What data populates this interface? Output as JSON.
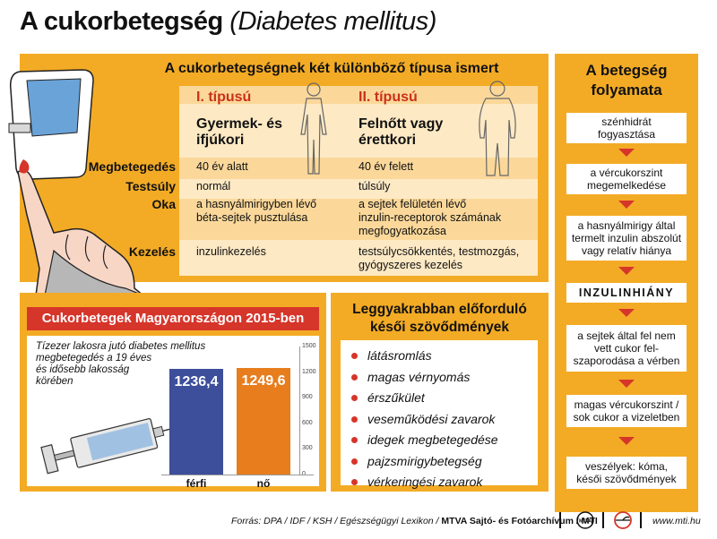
{
  "title": {
    "main": "A cukorbetegség",
    "latin": "(Diabetes mellitus)"
  },
  "types": {
    "heading": "A cukorbetegségnek két különböző típusa ismert",
    "type1": {
      "label": "I. típusú",
      "group_line1": "Gyermek- és",
      "group_line2": "ifjúkori"
    },
    "type2": {
      "label": "II. típusú",
      "group_line1": "Felnőtt vagy",
      "group_line2": "érettkori"
    },
    "rows": [
      {
        "label": "Megbetegedés",
        "t1": "40 év alatt",
        "t2": "40 év felett"
      },
      {
        "label": "Testsúly",
        "t1": "normál",
        "t2": "túlsúly"
      },
      {
        "label": "Oka",
        "t1": [
          "a hasnyálmirigyben lévő",
          "béta-sejtek pusztulása"
        ],
        "t2": [
          "a sejtek felületén lévő",
          "inzulin-receptorok számának",
          "megfogyatkozása"
        ]
      },
      {
        "label": "Kezelés",
        "t1": "inzulinkezelés",
        "t2": [
          "testsúlycsökkentés, testmozgás,",
          "gyógyszeres kezelés"
        ]
      }
    ]
  },
  "progression": {
    "title_line1": "A betegség",
    "title_line2": "folyamata",
    "steps": [
      [
        "szénhidrát",
        "fogyasztása"
      ],
      [
        "a vércukorszint",
        "megemelkedése"
      ],
      [
        "a hasnyálmirigy által",
        "termelt inzulin abszolút",
        "vagy relatív hiánya"
      ],
      [
        "INZULINHIÁNY"
      ],
      [
        "a sejtek által fel nem",
        "vett cukor fel-",
        "szaporodása a vérben"
      ],
      [
        "magas vércukorszint /",
        "sok cukor a vizeletben"
      ],
      [
        "veszélyek: kóma,",
        "késői szövődmények"
      ]
    ]
  },
  "stats": {
    "banner": "Cukorbetegek Magyarországon 2015-ben",
    "description": [
      "Tízezer lakosra jutó diabetes mellitus",
      "megbetegedés a 19 éves",
      "és idősebb lakosság",
      "körében"
    ]
  },
  "chart_data": {
    "type": "bar",
    "categories": [
      "férfi",
      "nő"
    ],
    "values": [
      1236.4,
      1249.6
    ],
    "value_labels": [
      "1236,4",
      "1249,6"
    ],
    "ylim": [
      0,
      1500
    ],
    "yticks": [
      "0",
      "300",
      "600",
      "900",
      "1200",
      "1500"
    ],
    "colors": [
      "#3d4e9a",
      "#e87d1d"
    ]
  },
  "complications": {
    "title_line1": "Leggyakrabban előforduló",
    "title_line2": "késői szövődmények",
    "items": [
      "látásromlás",
      "magas vérnyomás",
      "érszűkület",
      "veseműködési zavarok",
      "idegek megbetegedése",
      "pajzsmirigybetegség",
      "vérkeringési zavarok"
    ]
  },
  "footer": {
    "source_prefix": "Forrás: DPA / IDF / KSH / Egészségügyi Lexikon / ",
    "source_bold": "MTVA Sajtó- és Fotóarchívum / MTI",
    "logo1": "MTVA",
    "url": "www.mti.hu"
  },
  "colors": {
    "orange": "#f3ab25",
    "red": "#d6352a",
    "blue": "#3d4e9a",
    "bar_orange": "#e87d1d"
  }
}
